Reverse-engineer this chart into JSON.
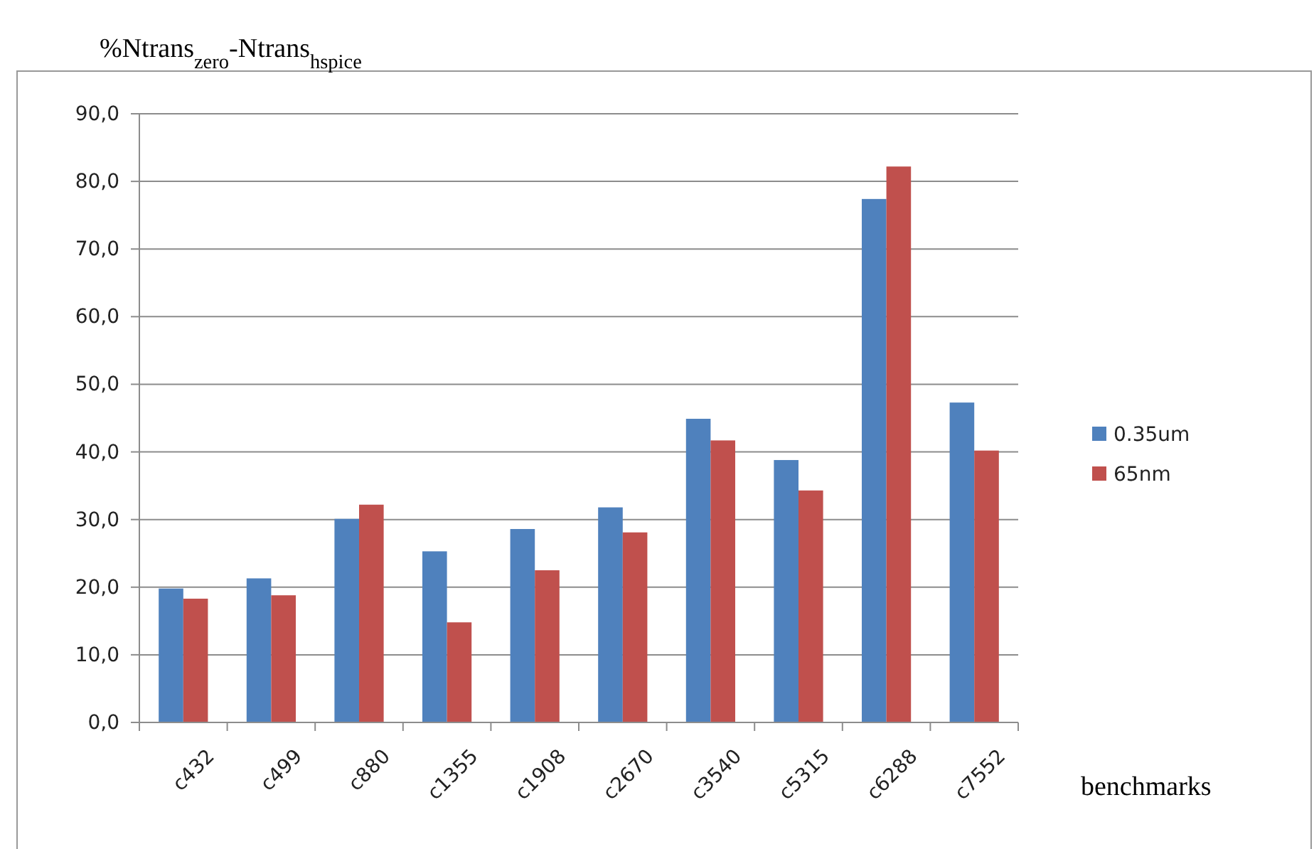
{
  "chart_data": {
    "type": "bar",
    "ylabel": "%Ntrans$_{zero}$-Ntrans$_{hspice}$",
    "xlabel": "benchmarks",
    "categories": [
      "c432",
      "c499",
      "c880",
      "c1355",
      "c1908",
      "c2670",
      "c3540",
      "c5315",
      "c6288",
      "c7552"
    ],
    "series": [
      {
        "name": "0.35um",
        "color": "#4f81bd",
        "values": [
          19.8,
          21.3,
          30.1,
          25.3,
          28.6,
          31.8,
          44.9,
          38.8,
          77.4,
          47.3
        ]
      },
      {
        "name": "65nm",
        "color": "#c0504d",
        "values": [
          18.3,
          18.8,
          32.2,
          14.8,
          22.5,
          28.1,
          41.7,
          34.3,
          82.2,
          40.2
        ]
      }
    ],
    "ylim": [
      0,
      90
    ],
    "yticks": [
      {
        "value": 0,
        "label": "0,0"
      },
      {
        "value": 10,
        "label": "10,0"
      },
      {
        "value": 20,
        "label": "20,0"
      },
      {
        "value": 30,
        "label": "30,0"
      },
      {
        "value": 40,
        "label": "40,0"
      },
      {
        "value": 50,
        "label": "50,0"
      },
      {
        "value": 60,
        "label": "60,0"
      },
      {
        "value": 70,
        "label": "70,0"
      },
      {
        "value": 80,
        "label": "80,0"
      },
      {
        "value": 90,
        "label": "90,0"
      }
    ],
    "grid": "y",
    "legend": "right"
  }
}
